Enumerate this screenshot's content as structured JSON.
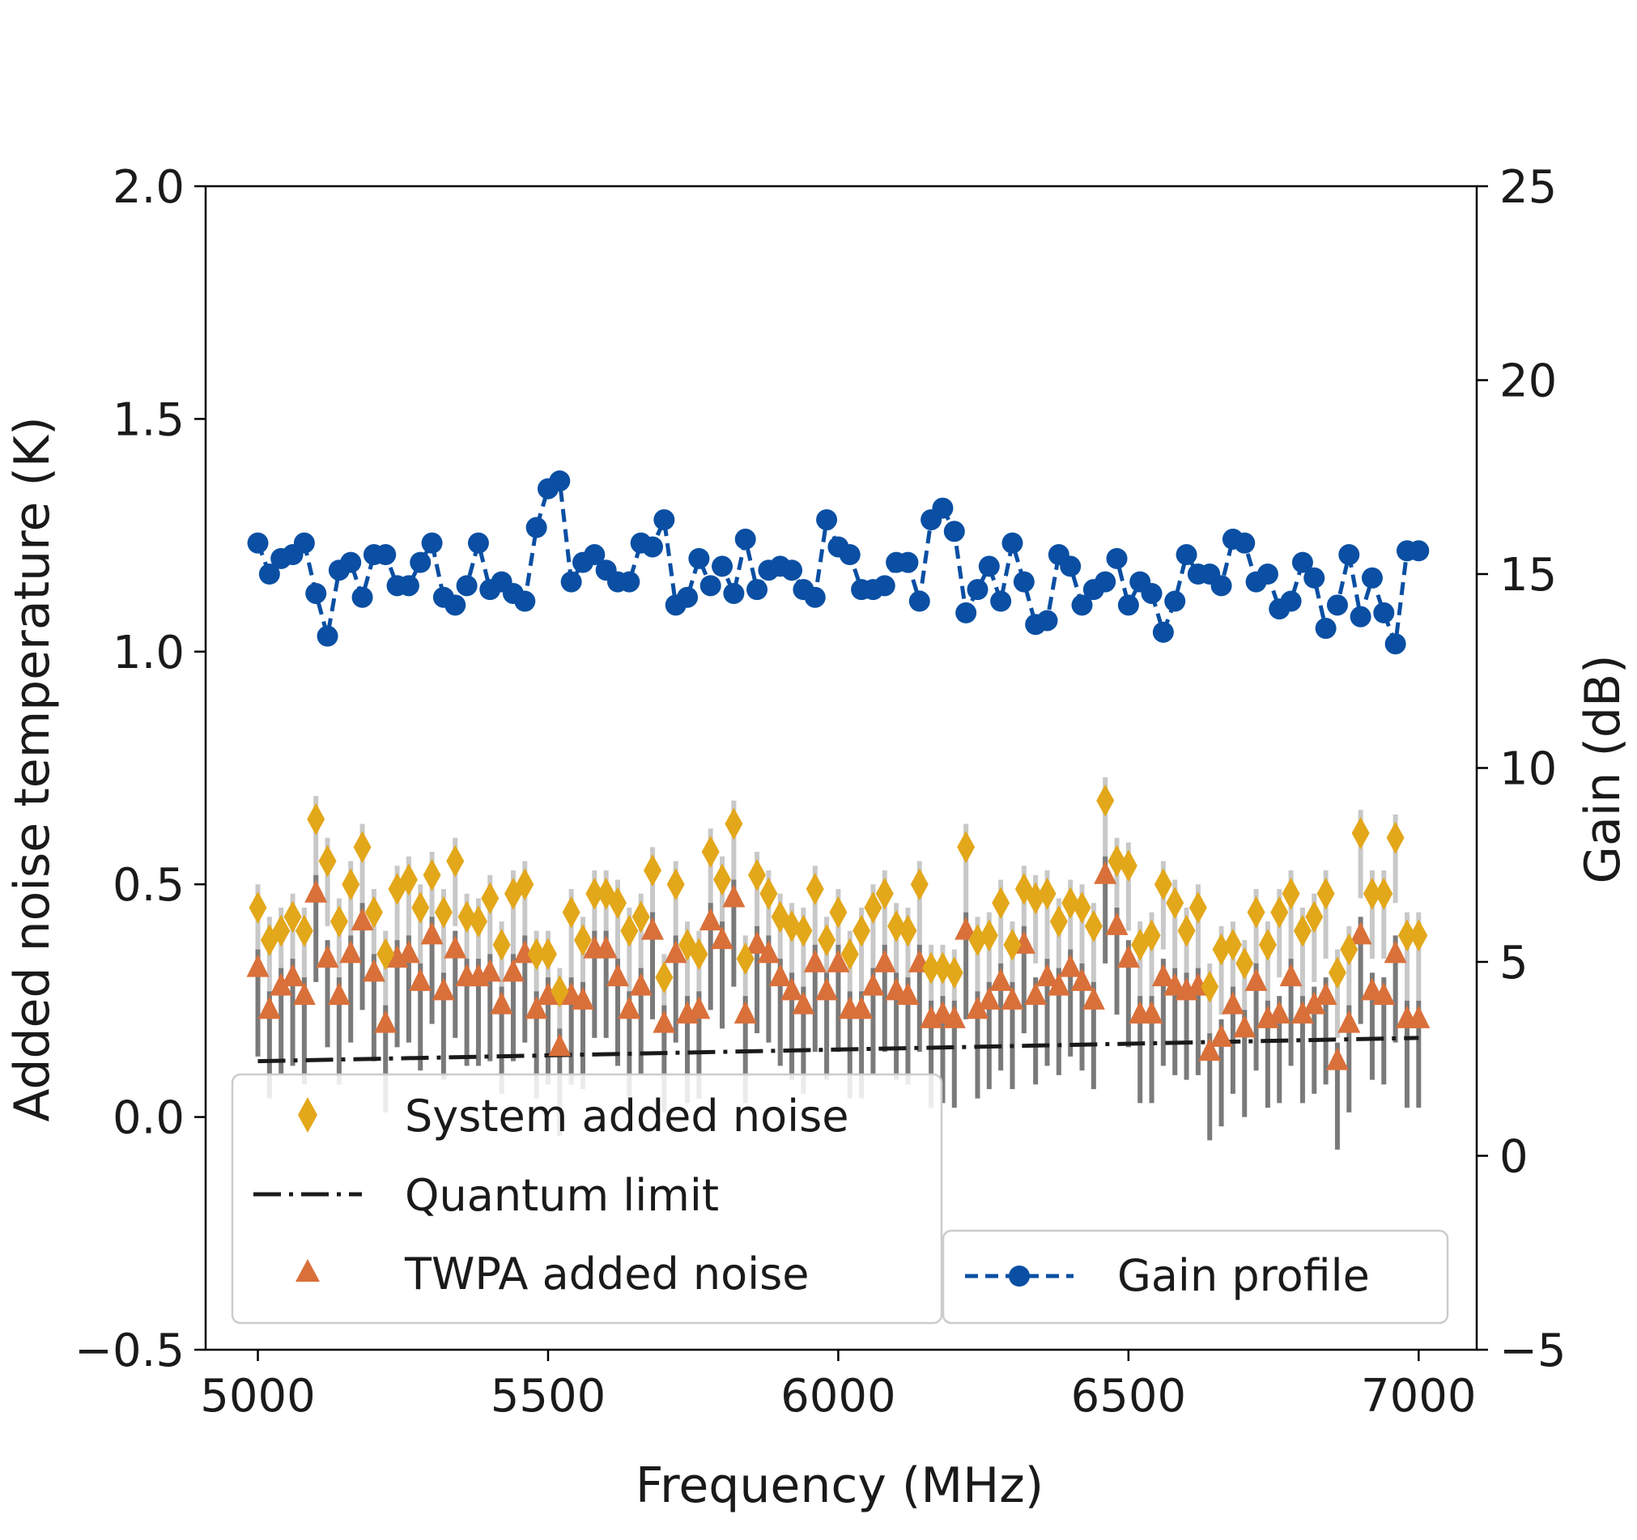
{
  "chart_data": {
    "type": "scatter",
    "xlabel": "Frequency (MHz)",
    "ylabel": "Added noise temperature (K)",
    "y2label": "Gain (dB)",
    "xlim": [
      4910,
      7100
    ],
    "ylim": [
      -0.5,
      2.0
    ],
    "y2lim": [
      -5,
      25
    ],
    "xticks": [
      5000,
      5500,
      6000,
      6500,
      7000
    ],
    "yticks": [
      -0.5,
      0.0,
      0.5,
      1.0,
      1.5,
      2.0
    ],
    "yticklabels": [
      "−0.5",
      "0.0",
      "0.5",
      "1.0",
      "1.5",
      "2.0"
    ],
    "y2ticks": [
      -5,
      0,
      5,
      10,
      15,
      20,
      25
    ],
    "y2ticklabels": [
      "−5",
      "0",
      "5",
      "10",
      "15",
      "20",
      "25"
    ],
    "colors": {
      "system": "#e3a71a",
      "twpa": "#d9703a",
      "gain": "#0a4fa3",
      "quantum": "#1a1a1a",
      "errbar_light": "#c8c8c8",
      "errbar_dark": "#7a7a7a"
    },
    "legend": {
      "system": "System added noise",
      "quantum": "Quantum limit",
      "twpa": "TWPA added noise",
      "gain": "Gain profile"
    },
    "frequency": [
      5000,
      5020,
      5040,
      5060,
      5080,
      5100,
      5120,
      5140,
      5160,
      5180,
      5200,
      5220,
      5240,
      5260,
      5280,
      5300,
      5320,
      5340,
      5360,
      5380,
      5400,
      5420,
      5440,
      5460,
      5480,
      5500,
      5520,
      5540,
      5560,
      5580,
      5600,
      5620,
      5640,
      5660,
      5680,
      5700,
      5720,
      5740,
      5760,
      5780,
      5800,
      5820,
      5840,
      5860,
      5880,
      5900,
      5920,
      5940,
      5960,
      5980,
      6000,
      6020,
      6040,
      6060,
      6080,
      6100,
      6120,
      6140,
      6160,
      6180,
      6200,
      6220,
      6240,
      6260,
      6280,
      6300,
      6320,
      6340,
      6360,
      6380,
      6400,
      6420,
      6440,
      6460,
      6480,
      6500,
      6520,
      6540,
      6560,
      6580,
      6600,
      6620,
      6640,
      6660,
      6680,
      6700,
      6720,
      6740,
      6760,
      6780,
      6800,
      6820,
      6840,
      6860,
      6880,
      6900,
      6920,
      6940,
      6960,
      6980,
      7000
    ],
    "series": [
      {
        "name": "System added noise",
        "marker": "diamond",
        "values": [
          0.45,
          0.38,
          0.4,
          0.43,
          0.4,
          0.64,
          0.55,
          0.42,
          0.5,
          0.58,
          0.44,
          0.35,
          0.49,
          0.51,
          0.45,
          0.52,
          0.44,
          0.55,
          0.43,
          0.42,
          0.47,
          0.37,
          0.48,
          0.5,
          0.35,
          0.35,
          0.27,
          0.44,
          0.38,
          0.48,
          0.48,
          0.46,
          0.4,
          0.43,
          0.53,
          0.3,
          0.5,
          0.37,
          0.35,
          0.57,
          0.51,
          0.63,
          0.34,
          0.52,
          0.48,
          0.43,
          0.41,
          0.4,
          0.49,
          0.38,
          0.44,
          0.35,
          0.4,
          0.45,
          0.48,
          0.41,
          0.4,
          0.5,
          0.32,
          0.32,
          0.31,
          0.58,
          0.38,
          0.39,
          0.46,
          0.37,
          0.49,
          0.47,
          0.48,
          0.42,
          0.46,
          0.45,
          0.41,
          0.68,
          0.55,
          0.54,
          0.37,
          0.39,
          0.5,
          0.46,
          0.4,
          0.45,
          0.28,
          0.36,
          0.37,
          0.33,
          0.44,
          0.37,
          0.44,
          0.48,
          0.4,
          0.43,
          0.48,
          0.31,
          0.36,
          0.61,
          0.48,
          0.48,
          0.6,
          0.39,
          0.39
        ]
      },
      {
        "name": "TWPA added noise",
        "marker": "triangle",
        "values": [
          0.32,
          0.23,
          0.28,
          0.3,
          0.26,
          0.48,
          0.34,
          0.26,
          0.35,
          0.42,
          0.31,
          0.2,
          0.34,
          0.35,
          0.29,
          0.39,
          0.27,
          0.36,
          0.3,
          0.3,
          0.31,
          0.24,
          0.31,
          0.35,
          0.23,
          0.26,
          0.15,
          0.26,
          0.25,
          0.36,
          0.36,
          0.3,
          0.23,
          0.28,
          0.4,
          0.2,
          0.35,
          0.22,
          0.23,
          0.42,
          0.38,
          0.47,
          0.22,
          0.37,
          0.35,
          0.3,
          0.27,
          0.24,
          0.33,
          0.27,
          0.33,
          0.23,
          0.23,
          0.28,
          0.33,
          0.27,
          0.26,
          0.33,
          0.21,
          0.22,
          0.21,
          0.4,
          0.23,
          0.25,
          0.29,
          0.25,
          0.37,
          0.26,
          0.3,
          0.28,
          0.32,
          0.29,
          0.25,
          0.52,
          0.41,
          0.34,
          0.22,
          0.22,
          0.3,
          0.28,
          0.27,
          0.28,
          0.14,
          0.17,
          0.24,
          0.19,
          0.29,
          0.21,
          0.22,
          0.3,
          0.22,
          0.24,
          0.26,
          0.12,
          0.2,
          0.39,
          0.27,
          0.26,
          0.35,
          0.21,
          0.21
        ]
      },
      {
        "name": "Quantum limit",
        "marker": "dashdot-line",
        "values_start": 0.12,
        "values_end": 0.17
      },
      {
        "name": "Gain profile",
        "marker": "circle-dashed",
        "axis": "right",
        "values": [
          15.8,
          15.0,
          15.4,
          15.5,
          15.8,
          14.5,
          13.4,
          15.1,
          15.3,
          14.4,
          15.5,
          15.5,
          14.7,
          14.7,
          15.3,
          15.8,
          14.4,
          14.2,
          14.7,
          15.8,
          14.6,
          14.8,
          14.5,
          14.3,
          16.2,
          17.2,
          17.4,
          14.8,
          15.3,
          15.5,
          15.1,
          14.8,
          14.8,
          15.8,
          15.7,
          16.4,
          14.2,
          14.4,
          15.4,
          14.7,
          15.2,
          14.5,
          15.9,
          14.6,
          15.1,
          15.2,
          15.1,
          14.6,
          14.4,
          16.4,
          15.7,
          15.5,
          14.6,
          14.6,
          14.7,
          15.3,
          15.3,
          14.3,
          16.4,
          16.7,
          16.1,
          14.0,
          14.6,
          15.2,
          14.3,
          15.8,
          14.8,
          13.7,
          13.8,
          15.5,
          15.2,
          14.2,
          14.6,
          14.8,
          15.4,
          14.2,
          14.8,
          14.5,
          13.5,
          14.3,
          15.5,
          15.0,
          15.0,
          14.7,
          15.9,
          15.8,
          14.8,
          15.0,
          14.1,
          14.3,
          15.3,
          14.9,
          13.6,
          14.2,
          15.5,
          13.9,
          14.9,
          14.0,
          13.2,
          15.6,
          15.6
        ]
      }
    ]
  }
}
